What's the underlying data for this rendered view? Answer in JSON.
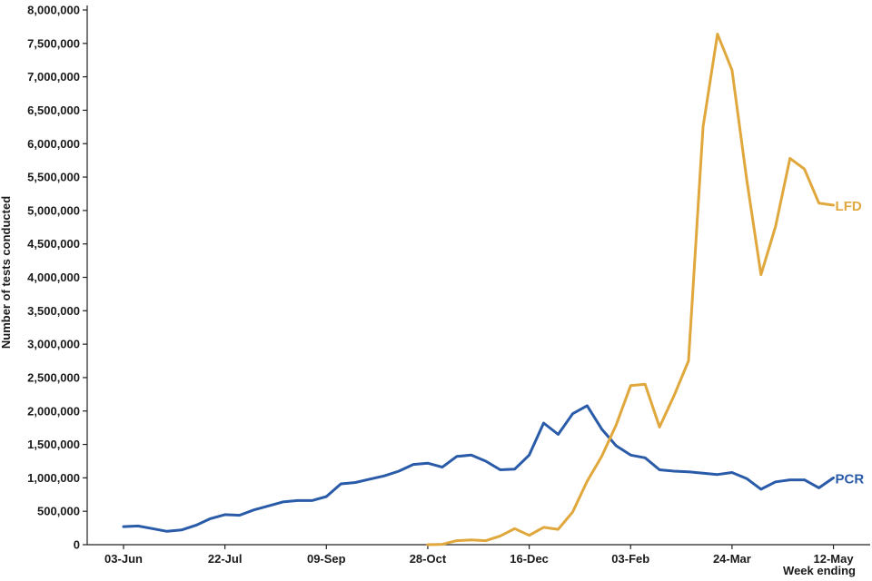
{
  "chart_data": {
    "type": "line",
    "xlabel": "Week ending",
    "ylabel": "Number of tests conducted",
    "ylim": [
      0,
      8000000
    ],
    "yticks": [
      "0",
      "500,000",
      "1,000,000",
      "1,500,000",
      "2,000,000",
      "2,500,000",
      "3,000,000",
      "3,500,000",
      "4,000,000",
      "4,500,000",
      "5,000,000",
      "5,500,000",
      "6,000,000",
      "6,500,000",
      "7,000,000",
      "7,500,000",
      "8,000,000"
    ],
    "xticks": [
      "03-Jun",
      "22-Jul",
      "09-Sep",
      "28-Oct",
      "16-Dec",
      "03-Feb",
      "24-Mar",
      "12-May"
    ],
    "xtick_index": [
      0,
      7,
      14,
      21,
      28,
      35,
      42,
      49
    ],
    "series": [
      {
        "name": "PCR",
        "color": "#2a5ba8",
        "start_index": 0,
        "values": [
          270000,
          280000,
          240000,
          200000,
          220000,
          290000,
          390000,
          450000,
          440000,
          520000,
          580000,
          640000,
          660000,
          660000,
          720000,
          910000,
          930000,
          980000,
          1030000,
          1100000,
          1200000,
          1220000,
          1160000,
          1320000,
          1340000,
          1250000,
          1120000,
          1130000,
          1340000,
          1820000,
          1650000,
          1960000,
          2080000,
          1730000,
          1480000,
          1340000,
          1300000,
          1120000,
          1100000,
          1090000,
          1070000,
          1050000,
          1080000,
          990000,
          830000,
          940000,
          970000,
          970000,
          850000,
          1000000
        ]
      },
      {
        "name": "LFD",
        "color": "#e0a83c",
        "start_index": 21,
        "values": [
          0,
          5000,
          60000,
          70000,
          60000,
          130000,
          240000,
          140000,
          260000,
          230000,
          490000,
          950000,
          1320000,
          1790000,
          2380000,
          2400000,
          1760000,
          2230000,
          2750000,
          6250000,
          7640000,
          7100000,
          5480000,
          4040000,
          4760000,
          5780000,
          5620000,
          5110000,
          5080000
        ]
      }
    ]
  }
}
